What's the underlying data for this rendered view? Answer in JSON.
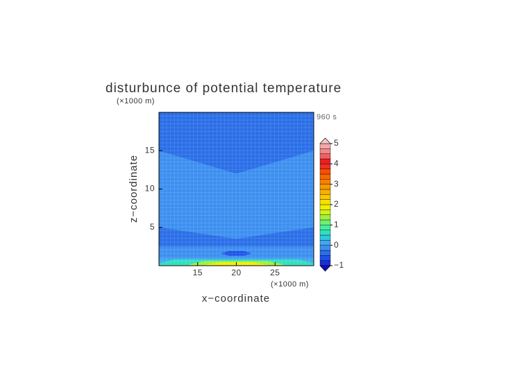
{
  "chart_data": {
    "type": "contour",
    "title": "disturbunce of potential temperature",
    "time_label": "960 s",
    "x_label": "x−coordinate",
    "y_label": "z−coordinate",
    "x_unit": "(×1000 m)",
    "y_unit": "(×1000 m)",
    "xlim": [
      10,
      30
    ],
    "ylim": [
      0,
      20
    ],
    "xticks": [
      15,
      20,
      25
    ],
    "yticks": [
      5,
      10,
      15
    ],
    "levels": [
      -1,
      -0.75,
      -0.5,
      -0.25,
      0,
      0.25,
      0.5,
      0.75,
      1,
      1.25,
      1.5,
      1.75,
      2,
      2.25,
      2.5,
      2.75,
      3,
      3.25,
      3.5,
      3.75,
      4,
      4.25,
      4.5,
      4.75,
      5
    ],
    "colors": [
      "#1a2fd8",
      "#1f50e8",
      "#2a6ee8",
      "#3c8ff0",
      "#40a8f0",
      "#30c8e0",
      "#30e0c0",
      "#40f0a0",
      "#70f070",
      "#a0f040",
      "#d0f020",
      "#f0f000",
      "#f8e000",
      "#f8c800",
      "#f8b000",
      "#f89800",
      "#f88000",
      "#f86800",
      "#f85000",
      "#f03020",
      "#e82020",
      "#f06060",
      "#f08888",
      "#f4a8a8"
    ],
    "extend_colors": [
      "#1010c0",
      "#f8c8c8"
    ],
    "colorbar_ticks": [
      {
        "value": -1,
        "label": "−1"
      },
      0,
      1,
      2,
      3,
      4,
      5
    ],
    "regions": [
      {
        "value": -0.3,
        "x": [
          10,
          30,
          30,
          10
        ],
        "z": [
          0,
          0,
          20,
          20
        ]
      },
      {
        "value": -0.15,
        "x": [
          10,
          20,
          30,
          30,
          20,
          10
        ],
        "z": [
          15,
          12,
          15,
          5,
          3.5,
          5
        ]
      },
      {
        "value": -0.15,
        "x": [
          10,
          30,
          30,
          10
        ],
        "z": [
          2.5,
          2.5,
          1,
          1
        ]
      },
      {
        "value": -0.6,
        "x": [
          18,
          19,
          21,
          22,
          21,
          19
        ],
        "z": [
          1.6,
          1.9,
          1.9,
          1.6,
          1.3,
          1.3
        ]
      },
      {
        "value": 0.1,
        "x": [
          10,
          30,
          30,
          10
        ],
        "z": [
          1,
          1,
          0,
          0
        ]
      },
      {
        "value": 0.6,
        "x": [
          10,
          12,
          28,
          30,
          30,
          10
        ],
        "z": [
          0.3,
          0.8,
          0.8,
          0.3,
          0,
          0
        ]
      },
      {
        "value": 1.3,
        "x": [
          14,
          16,
          24,
          26,
          26,
          14
        ],
        "z": [
          0.2,
          0.6,
          0.6,
          0.2,
          0,
          0
        ]
      },
      {
        "value": 1.8,
        "x": [
          16,
          18,
          22,
          24,
          24,
          16
        ],
        "z": [
          0.1,
          0.45,
          0.45,
          0.1,
          0,
          0
        ]
      }
    ]
  }
}
